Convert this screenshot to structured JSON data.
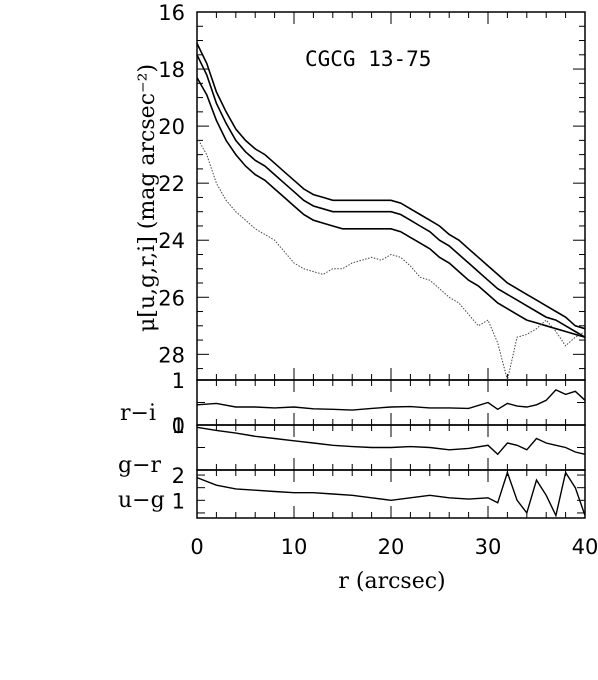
{
  "chart_data": {
    "type": "line",
    "title": "CGCG 13-75",
    "xlabel": "r (arcsec)",
    "xlim": [
      0,
      40
    ],
    "x_ticks": [
      "0",
      "10",
      "20",
      "30",
      "40"
    ],
    "panels": {
      "sb": {
        "ylabel": "μ[u,g,r,i] (mag arcsec⁻²)",
        "ylim": [
          28.9,
          16
        ],
        "y_ticks": [
          "16",
          "18",
          "20",
          "22",
          "24",
          "26",
          "28"
        ],
        "series": [
          {
            "style": "solid",
            "x": [
              0,
              1,
              2,
              3,
              4,
              5,
              6,
              7,
              8,
              9,
              10,
              11,
              12,
              13,
              14,
              15,
              16,
              17,
              18,
              19,
              20,
              21,
              22,
              23,
              24,
              25,
              26,
              27,
              28,
              29,
              30,
              31,
              32,
              33,
              34,
              35,
              36,
              37,
              38,
              39,
              40
            ],
            "y": [
              17.1,
              17.8,
              18.8,
              19.5,
              20.1,
              20.5,
              20.8,
              21.0,
              21.3,
              21.6,
              21.9,
              22.2,
              22.4,
              22.5,
              22.6,
              22.6,
              22.6,
              22.6,
              22.6,
              22.6,
              22.6,
              22.7,
              22.9,
              23.1,
              23.3,
              23.5,
              23.8,
              24.0,
              24.3,
              24.6,
              24.9,
              25.2,
              25.5,
              25.7,
              25.9,
              26.1,
              26.3,
              26.5,
              26.7,
              27.0,
              27.1
            ]
          },
          {
            "style": "solid",
            "x": [
              0,
              1,
              2,
              3,
              4,
              5,
              6,
              7,
              8,
              9,
              10,
              11,
              12,
              13,
              14,
              15,
              16,
              17,
              18,
              19,
              20,
              21,
              22,
              23,
              24,
              25,
              26,
              27,
              28,
              29,
              30,
              31,
              32,
              33,
              34,
              35,
              36,
              37,
              38,
              39,
              40
            ],
            "y": [
              17.5,
              18.2,
              19.2,
              19.9,
              20.5,
              20.9,
              21.2,
              21.4,
              21.7,
              22.0,
              22.3,
              22.6,
              22.8,
              22.9,
              23.0,
              23.0,
              23.0,
              23.0,
              23.0,
              23.0,
              23.0,
              23.1,
              23.3,
              23.5,
              23.7,
              24.0,
              24.2,
              24.5,
              24.8,
              25.1,
              25.4,
              25.7,
              25.9,
              26.1,
              26.3,
              26.5,
              26.7,
              26.8,
              27.0,
              27.2,
              27.4
            ]
          },
          {
            "style": "solid",
            "x": [
              0,
              1,
              2,
              3,
              4,
              5,
              6,
              7,
              8,
              9,
              10,
              11,
              12,
              13,
              14,
              15,
              16,
              17,
              18,
              19,
              20,
              21,
              22,
              23,
              24,
              25,
              26,
              27,
              28,
              29,
              30,
              31,
              32,
              33,
              34,
              35,
              36,
              37,
              38,
              39,
              40
            ],
            "y": [
              18.3,
              18.9,
              19.8,
              20.5,
              21.0,
              21.4,
              21.7,
              21.9,
              22.2,
              22.5,
              22.8,
              23.1,
              23.3,
              23.4,
              23.5,
              23.6,
              23.6,
              23.6,
              23.6,
              23.6,
              23.6,
              23.7,
              23.9,
              24.1,
              24.3,
              24.6,
              24.8,
              25.1,
              25.4,
              25.6,
              25.9,
              26.2,
              26.4,
              26.6,
              26.8,
              26.9,
              27.0,
              27.1,
              27.2,
              27.3,
              27.4
            ]
          },
          {
            "style": "dotted",
            "x": [
              0,
              1,
              2,
              3,
              4,
              5,
              6,
              7,
              8,
              9,
              10,
              11,
              12,
              13,
              14,
              15,
              16,
              17,
              18,
              19,
              20,
              21,
              22,
              23,
              24,
              25,
              26,
              27,
              28,
              29,
              30,
              31,
              32,
              33,
              34,
              35,
              36,
              37,
              38,
              39,
              40
            ],
            "y": [
              20.4,
              21.0,
              22.0,
              22.6,
              23.0,
              23.3,
              23.6,
              23.8,
              24.0,
              24.4,
              24.8,
              25.0,
              25.1,
              25.2,
              25.0,
              25.0,
              24.8,
              24.7,
              24.6,
              24.7,
              24.5,
              24.6,
              24.9,
              25.3,
              25.4,
              25.7,
              26.0,
              26.2,
              26.6,
              27.0,
              26.8,
              27.6,
              28.9,
              27.4,
              27.3,
              27.1,
              26.8,
              27.2,
              27.7,
              27.4,
              27.2
            ]
          }
        ]
      },
      "ri": {
        "ylabel": "r−i",
        "ylim": [
          0,
          1
        ],
        "y_ticks": [
          "1",
          "0"
        ],
        "x": [
          0,
          2,
          4,
          6,
          8,
          10,
          12,
          14,
          16,
          18,
          20,
          22,
          24,
          26,
          28,
          30,
          31,
          32,
          33,
          34,
          35,
          36,
          37,
          38,
          39,
          40
        ],
        "values": [
          0.45,
          0.48,
          0.4,
          0.4,
          0.38,
          0.4,
          0.36,
          0.35,
          0.33,
          0.37,
          0.4,
          0.41,
          0.38,
          0.38,
          0.37,
          0.5,
          0.35,
          0.48,
          0.42,
          0.4,
          0.45,
          0.55,
          0.78,
          0.68,
          0.75,
          0.55
        ]
      },
      "gr": {
        "ylabel": "g−r",
        "ylim": [
          0,
          1
        ],
        "y_ticks": [
          "1"
        ],
        "x": [
          0,
          2,
          4,
          6,
          8,
          10,
          12,
          14,
          16,
          18,
          20,
          22,
          24,
          26,
          28,
          30,
          31,
          32,
          33,
          34,
          35,
          36,
          37,
          38,
          39,
          40
        ],
        "values": [
          0.95,
          0.88,
          0.82,
          0.75,
          0.7,
          0.65,
          0.6,
          0.55,
          0.52,
          0.5,
          0.5,
          0.52,
          0.5,
          0.45,
          0.48,
          0.55,
          0.35,
          0.6,
          0.55,
          0.45,
          0.7,
          0.6,
          0.55,
          0.5,
          0.4,
          0.35
        ]
      },
      "ug": {
        "ylabel": "u−g",
        "ylim": [
          0.3,
          2.2
        ],
        "y_ticks": [
          "2",
          "1"
        ],
        "x": [
          0,
          2,
          4,
          6,
          8,
          10,
          12,
          14,
          16,
          18,
          20,
          22,
          24,
          26,
          28,
          30,
          31,
          32,
          33,
          34,
          35,
          36,
          37,
          38,
          39,
          40
        ],
        "values": [
          1.9,
          1.6,
          1.45,
          1.4,
          1.35,
          1.3,
          1.3,
          1.25,
          1.2,
          1.1,
          1.0,
          1.1,
          1.2,
          1.1,
          1.05,
          1.1,
          0.9,
          2.1,
          1.0,
          0.5,
          1.8,
          1.2,
          0.4,
          2.1,
          1.5,
          0.4
        ]
      }
    }
  }
}
